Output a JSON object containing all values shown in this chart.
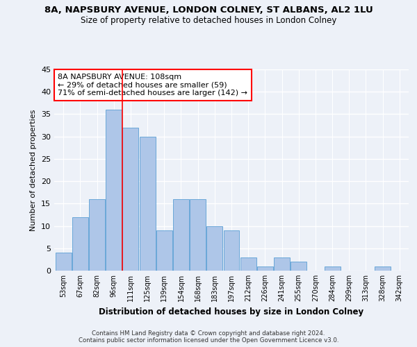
{
  "title1": "8A, NAPSBURY AVENUE, LONDON COLNEY, ST ALBANS, AL2 1LU",
  "title2": "Size of property relative to detached houses in London Colney",
  "xlabel": "Distribution of detached houses by size in London Colney",
  "ylabel": "Number of detached properties",
  "categories": [
    "53sqm",
    "67sqm",
    "82sqm",
    "96sqm",
    "111sqm",
    "125sqm",
    "139sqm",
    "154sqm",
    "168sqm",
    "183sqm",
    "197sqm",
    "212sqm",
    "226sqm",
    "241sqm",
    "255sqm",
    "270sqm",
    "284sqm",
    "299sqm",
    "313sqm",
    "328sqm",
    "342sqm"
  ],
  "values": [
    4,
    12,
    16,
    36,
    32,
    30,
    9,
    16,
    16,
    10,
    9,
    3,
    1,
    3,
    2,
    0,
    1,
    0,
    0,
    1,
    0
  ],
  "bar_color": "#aec6e8",
  "bar_edge_color": "#5a9fd4",
  "annotation_title": "8A NAPSBURY AVENUE: 108sqm",
  "annotation_line1": "← 29% of detached houses are smaller (59)",
  "annotation_line2": "71% of semi-detached houses are larger (142) →",
  "footer1": "Contains HM Land Registry data © Crown copyright and database right 2024.",
  "footer2": "Contains public sector information licensed under the Open Government Licence v3.0.",
  "ylim": [
    0,
    45
  ],
  "yticks": [
    0,
    5,
    10,
    15,
    20,
    25,
    30,
    35,
    40,
    45
  ],
  "bg_color": "#edf1f8",
  "grid_color": "#ffffff",
  "red_line_index": 4
}
